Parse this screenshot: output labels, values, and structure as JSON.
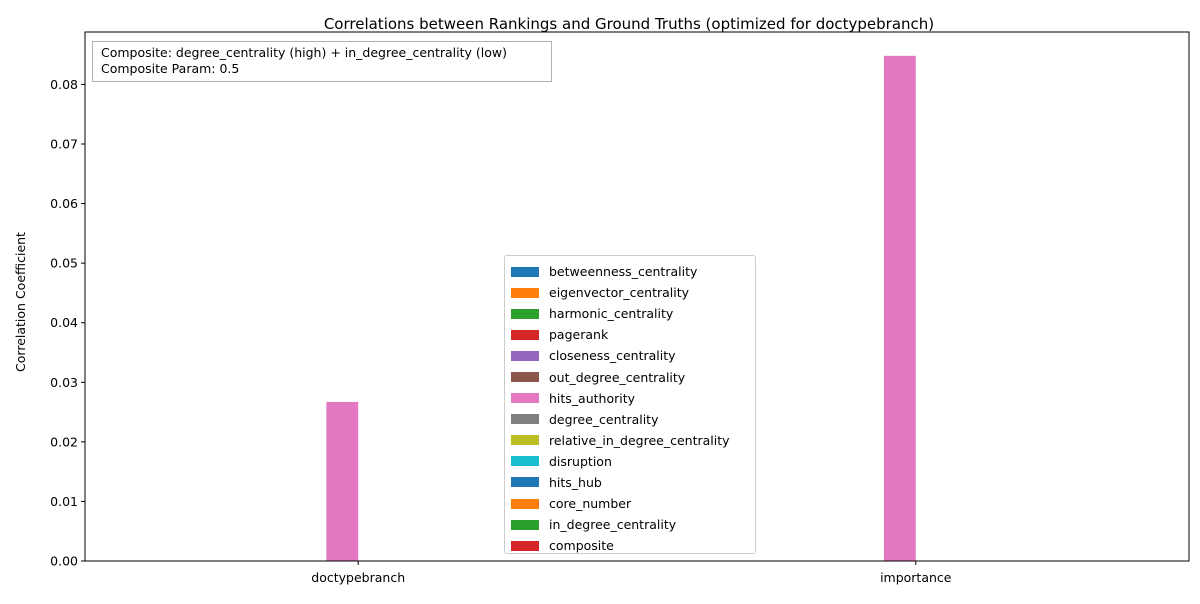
{
  "chart_data": {
    "type": "bar",
    "title": "Correlations between Rankings and Ground Truths (optimized for doctypebranch)",
    "xlabel": "",
    "ylabel": "Correlation Coefficient",
    "categories": [
      "doctypebranch",
      "importance"
    ],
    "ylim": [
      0,
      0.0888
    ],
    "yticks": [
      "0.00",
      "0.01",
      "0.02",
      "0.03",
      "0.04",
      "0.05",
      "0.06",
      "0.07",
      "0.08"
    ],
    "grid": false,
    "legend_position": "lower-center",
    "annotation": [
      "Composite: degree_centrality (high) + in_degree_centrality (low)",
      "Composite Param: 0.5"
    ],
    "series": [
      {
        "name": "betweenness_centrality",
        "color": "#1f77b4",
        "values": [
          null,
          null
        ]
      },
      {
        "name": "eigenvector_centrality",
        "color": "#ff7f0e",
        "values": [
          null,
          null
        ]
      },
      {
        "name": "harmonic_centrality",
        "color": "#2ca02c",
        "values": [
          null,
          null
        ]
      },
      {
        "name": "pagerank",
        "color": "#d62728",
        "values": [
          null,
          null
        ]
      },
      {
        "name": "closeness_centrality",
        "color": "#9467bd",
        "values": [
          null,
          null
        ]
      },
      {
        "name": "out_degree_centrality",
        "color": "#8c564b",
        "values": [
          null,
          null
        ]
      },
      {
        "name": "hits_authority",
        "color": "#e377c2",
        "values": [
          0.0267,
          0.0848
        ]
      },
      {
        "name": "degree_centrality",
        "color": "#7f7f7f",
        "values": [
          null,
          null
        ]
      },
      {
        "name": "relative_in_degree_centrality",
        "color": "#bcbd22",
        "values": [
          null,
          null
        ]
      },
      {
        "name": "disruption",
        "color": "#17becf",
        "values": [
          null,
          null
        ]
      },
      {
        "name": "hits_hub",
        "color": "#1f77b4",
        "values": [
          null,
          null
        ]
      },
      {
        "name": "core_number",
        "color": "#ff7f0e",
        "values": [
          null,
          null
        ]
      },
      {
        "name": "in_degree_centrality",
        "color": "#2ca02c",
        "values": [
          null,
          null
        ]
      },
      {
        "name": "composite",
        "color": "#d62728",
        "values": [
          null,
          null
        ]
      }
    ]
  }
}
